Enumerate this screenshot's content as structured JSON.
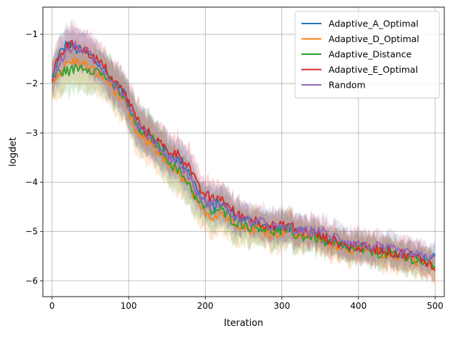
{
  "chart_data": {
    "type": "line",
    "title": "",
    "xlabel": "Iteration",
    "ylabel": "logdet",
    "xlim": [
      -12,
      512
    ],
    "ylim": [
      -6.32,
      -0.45
    ],
    "xticks": [
      0,
      100,
      200,
      300,
      400,
      500
    ],
    "xtick_labels": [
      "0",
      "100",
      "200",
      "300",
      "400",
      "500"
    ],
    "yticks": [
      -6,
      -5,
      -4,
      -3,
      -2,
      -1
    ],
    "ytick_labels": [
      "−6",
      "−5",
      "−4",
      "−3",
      "−2",
      "−1"
    ],
    "grid": true,
    "legend_position": "top-right",
    "shaded_band": "variability band around each series",
    "x": [
      0,
      10,
      20,
      30,
      40,
      50,
      60,
      70,
      80,
      90,
      100,
      110,
      120,
      130,
      140,
      150,
      160,
      170,
      180,
      190,
      200,
      210,
      220,
      230,
      240,
      250,
      260,
      270,
      280,
      290,
      300,
      310,
      320,
      330,
      340,
      350,
      360,
      370,
      380,
      390,
      400,
      410,
      420,
      430,
      440,
      450,
      460,
      470,
      480,
      490,
      500
    ],
    "series": [
      {
        "name": "Adaptive_A_Optimal",
        "color": "#1f77b4",
        "values": [
          -1.9,
          -1.4,
          -1.18,
          -1.3,
          -1.35,
          -1.45,
          -1.6,
          -1.75,
          -2.0,
          -2.1,
          -2.4,
          -2.8,
          -3.0,
          -3.1,
          -3.25,
          -3.4,
          -3.5,
          -3.6,
          -3.8,
          -4.2,
          -4.4,
          -4.5,
          -4.4,
          -4.55,
          -4.7,
          -4.75,
          -4.8,
          -4.8,
          -4.9,
          -4.95,
          -4.95,
          -4.9,
          -5.05,
          -5.0,
          -5.05,
          -5.1,
          -5.2,
          -5.2,
          -5.25,
          -5.3,
          -5.3,
          -5.35,
          -5.35,
          -5.4,
          -5.4,
          -5.45,
          -5.5,
          -5.5,
          -5.55,
          -5.6,
          -5.5
        ],
        "band": [
          0.3,
          0.35,
          0.35,
          0.35,
          0.35,
          0.35,
          0.35,
          0.35,
          0.4,
          0.4,
          0.4,
          0.4,
          0.4,
          0.4,
          0.4,
          0.4,
          0.4,
          0.4,
          0.4,
          0.35,
          0.35,
          0.35,
          0.35,
          0.35,
          0.35,
          0.3,
          0.3,
          0.3,
          0.3,
          0.3,
          0.3,
          0.3,
          0.3,
          0.3,
          0.25,
          0.25,
          0.25,
          0.25,
          0.25,
          0.25,
          0.25,
          0.25,
          0.25,
          0.25,
          0.25,
          0.25,
          0.25,
          0.25,
          0.25,
          0.25,
          0.25
        ]
      },
      {
        "name": "Adaptive_D_Optimal",
        "color": "#ff7f0e",
        "values": [
          -1.9,
          -1.8,
          -1.6,
          -1.55,
          -1.6,
          -1.7,
          -1.8,
          -1.9,
          -2.1,
          -2.3,
          -2.6,
          -3.0,
          -3.15,
          -3.2,
          -3.4,
          -3.6,
          -3.8,
          -3.9,
          -4.1,
          -4.5,
          -4.6,
          -4.7,
          -4.6,
          -4.75,
          -4.8,
          -4.9,
          -4.95,
          -4.9,
          -5.0,
          -5.05,
          -5.0,
          -4.95,
          -5.1,
          -5.05,
          -5.1,
          -5.15,
          -5.25,
          -5.25,
          -5.3,
          -5.35,
          -5.35,
          -5.4,
          -5.4,
          -5.45,
          -5.45,
          -5.5,
          -5.5,
          -5.55,
          -5.6,
          -5.65,
          -5.75
        ],
        "band": [
          0.4,
          0.45,
          0.45,
          0.45,
          0.45,
          0.45,
          0.45,
          0.45,
          0.45,
          0.45,
          0.45,
          0.45,
          0.45,
          0.45,
          0.45,
          0.45,
          0.45,
          0.45,
          0.45,
          0.4,
          0.4,
          0.4,
          0.4,
          0.4,
          0.4,
          0.35,
          0.35,
          0.35,
          0.35,
          0.35,
          0.35,
          0.35,
          0.35,
          0.3,
          0.3,
          0.3,
          0.3,
          0.3,
          0.3,
          0.3,
          0.3,
          0.3,
          0.3,
          0.3,
          0.3,
          0.3,
          0.3,
          0.3,
          0.3,
          0.3,
          0.3
        ]
      },
      {
        "name": "Adaptive_Distance",
        "color": "#2ca02c",
        "values": [
          -1.9,
          -1.75,
          -1.75,
          -1.7,
          -1.65,
          -1.7,
          -1.75,
          -1.85,
          -2.05,
          -2.2,
          -2.5,
          -2.85,
          -3.0,
          -3.1,
          -3.3,
          -3.5,
          -3.7,
          -3.85,
          -4.05,
          -4.4,
          -4.5,
          -4.6,
          -4.55,
          -4.7,
          -4.8,
          -4.85,
          -4.9,
          -4.9,
          -4.95,
          -5.0,
          -5.0,
          -4.95,
          -5.1,
          -5.1,
          -5.1,
          -5.15,
          -5.25,
          -5.25,
          -5.3,
          -5.35,
          -5.35,
          -5.4,
          -5.4,
          -5.45,
          -5.45,
          -5.5,
          -5.55,
          -5.55,
          -5.6,
          -5.65,
          -5.7
        ],
        "band": [
          0.4,
          0.45,
          0.45,
          0.45,
          0.45,
          0.45,
          0.45,
          0.45,
          0.45,
          0.45,
          0.45,
          0.45,
          0.45,
          0.45,
          0.45,
          0.45,
          0.45,
          0.45,
          0.45,
          0.4,
          0.4,
          0.4,
          0.4,
          0.4,
          0.4,
          0.35,
          0.35,
          0.35,
          0.35,
          0.35,
          0.35,
          0.35,
          0.35,
          0.3,
          0.3,
          0.3,
          0.3,
          0.3,
          0.3,
          0.3,
          0.3,
          0.3,
          0.3,
          0.3,
          0.3,
          0.3,
          0.3,
          0.3,
          0.3,
          0.3,
          0.3
        ]
      },
      {
        "name": "Adaptive_E_Optimal",
        "color": "#d62728",
        "values": [
          -1.9,
          -1.4,
          -1.25,
          -1.22,
          -1.3,
          -1.4,
          -1.55,
          -1.7,
          -1.95,
          -2.1,
          -2.35,
          -2.7,
          -2.95,
          -3.05,
          -3.2,
          -3.35,
          -3.4,
          -3.5,
          -3.7,
          -4.1,
          -4.25,
          -4.35,
          -4.3,
          -4.5,
          -4.65,
          -4.7,
          -4.75,
          -4.8,
          -4.85,
          -4.9,
          -4.9,
          -4.85,
          -5.0,
          -5.0,
          -5.0,
          -5.1,
          -5.15,
          -5.2,
          -5.25,
          -5.3,
          -5.3,
          -5.35,
          -5.35,
          -5.35,
          -5.4,
          -5.45,
          -5.45,
          -5.5,
          -5.55,
          -5.6,
          -5.8
        ],
        "band": [
          0.35,
          0.4,
          0.4,
          0.4,
          0.4,
          0.4,
          0.4,
          0.4,
          0.4,
          0.4,
          0.4,
          0.4,
          0.4,
          0.4,
          0.4,
          0.4,
          0.4,
          0.4,
          0.4,
          0.35,
          0.35,
          0.35,
          0.35,
          0.35,
          0.35,
          0.3,
          0.3,
          0.3,
          0.3,
          0.3,
          0.3,
          0.3,
          0.3,
          0.3,
          0.3,
          0.3,
          0.3,
          0.3,
          0.3,
          0.3,
          0.3,
          0.3,
          0.3,
          0.3,
          0.3,
          0.3,
          0.3,
          0.3,
          0.3,
          0.3,
          0.3
        ]
      },
      {
        "name": "Random",
        "color": "#9467bd",
        "values": [
          -1.9,
          -1.55,
          -1.35,
          -1.25,
          -1.3,
          -1.45,
          -1.6,
          -1.75,
          -2.0,
          -2.15,
          -2.45,
          -2.8,
          -3.0,
          -3.1,
          -3.3,
          -3.45,
          -3.55,
          -3.7,
          -3.9,
          -4.25,
          -4.4,
          -4.45,
          -4.4,
          -4.6,
          -4.7,
          -4.75,
          -4.8,
          -4.8,
          -4.85,
          -4.9,
          -4.95,
          -4.9,
          -5.0,
          -5.0,
          -5.0,
          -4.95,
          -5.1,
          -5.1,
          -5.15,
          -5.2,
          -5.25,
          -5.3,
          -5.3,
          -5.35,
          -5.35,
          -5.4,
          -5.45,
          -5.45,
          -5.5,
          -5.55,
          -5.45
        ],
        "band": [
          0.35,
          0.4,
          0.4,
          0.4,
          0.4,
          0.4,
          0.4,
          0.4,
          0.4,
          0.4,
          0.4,
          0.4,
          0.4,
          0.4,
          0.4,
          0.4,
          0.4,
          0.4,
          0.4,
          0.35,
          0.35,
          0.35,
          0.35,
          0.35,
          0.35,
          0.3,
          0.3,
          0.3,
          0.3,
          0.3,
          0.3,
          0.3,
          0.3,
          0.3,
          0.3,
          0.3,
          0.3,
          0.3,
          0.3,
          0.3,
          0.3,
          0.3,
          0.3,
          0.3,
          0.3,
          0.3,
          0.3,
          0.3,
          0.3,
          0.3,
          0.3
        ]
      }
    ]
  }
}
